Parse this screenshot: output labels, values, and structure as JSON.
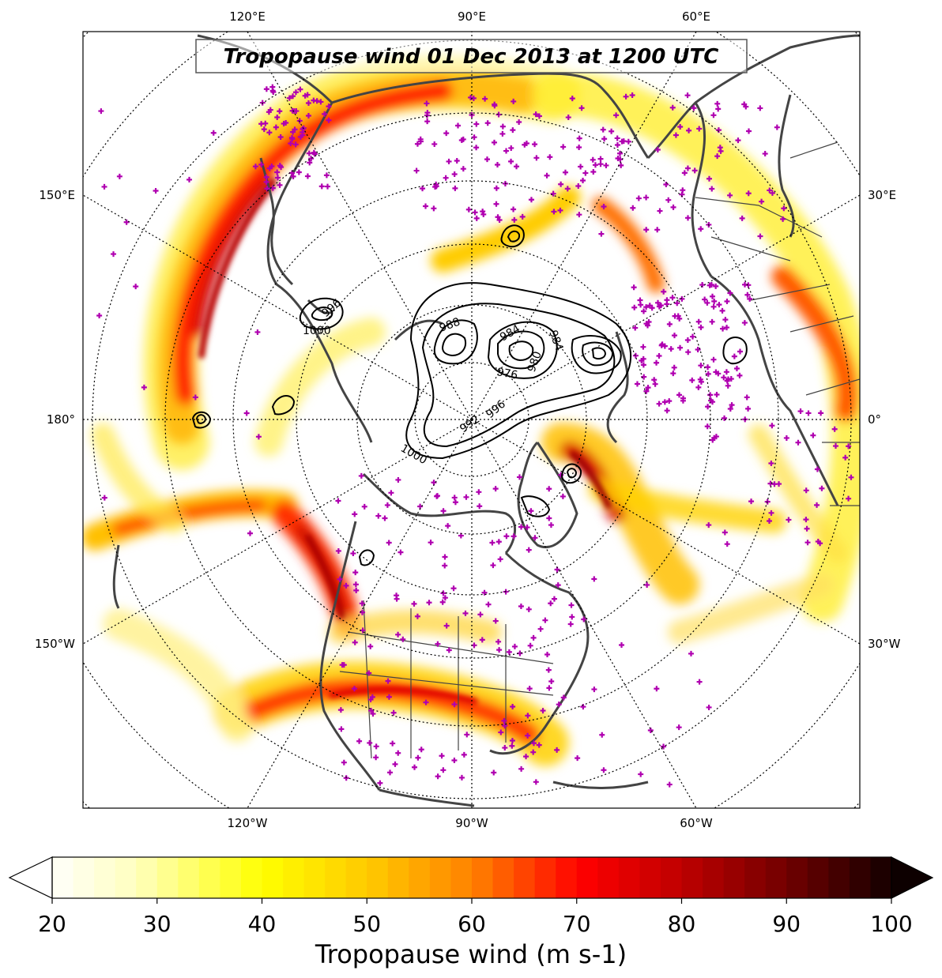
{
  "title": "Tropopause wind 01 Dec 2013 at 1200 UTC",
  "colors": {
    "coast": "#444444",
    "stations": "#b000b0",
    "contours": "#000000",
    "graticule": "#000000"
  },
  "longitude_labels": {
    "top": [
      "120°E",
      "90°E",
      "60°E"
    ],
    "bottom": [
      "120°W",
      "90°W",
      "60°W"
    ],
    "left": [
      "150°E",
      "180°",
      "150°W"
    ],
    "right": [
      "30°E",
      "0°",
      "30°W"
    ]
  },
  "pressure_contour_labels": [
    "996",
    "1000",
    "988",
    "984",
    "976",
    "980",
    "984",
    "992",
    "996",
    "1000"
  ],
  "colorbar": {
    "label": "Tropopause wind (m s-1)",
    "min": 20,
    "max": 100,
    "step": 2,
    "extend": "both",
    "ticks": [
      "20",
      "30",
      "40",
      "50",
      "60",
      "70",
      "80",
      "90",
      "100"
    ]
  },
  "map": {
    "projection": "north-polar-stereographic",
    "central_longitude": -90,
    "parameter": "Tropopause wind",
    "units": "m s-1"
  }
}
